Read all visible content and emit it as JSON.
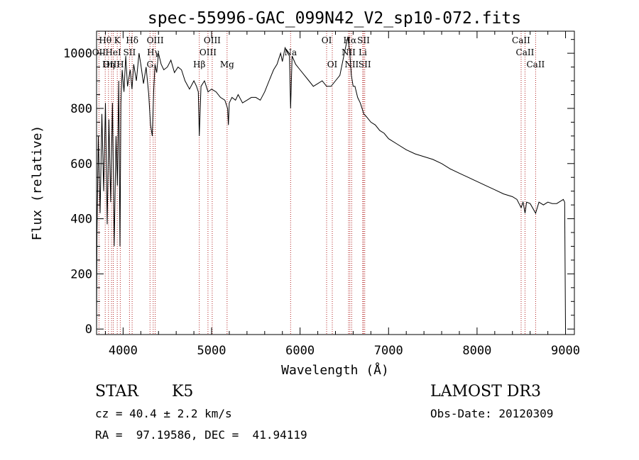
{
  "chart_data": {
    "type": "line",
    "title": "spec-55996-GAC_099N42_V2_sp10-072.fits",
    "xlabel": "Wavelength (Å)",
    "ylabel": "Flux (relative)",
    "xlim": [
      3700,
      9100
    ],
    "ylim": [
      -20,
      1080
    ],
    "xticks": [
      4000,
      5000,
      6000,
      7000,
      8000,
      9000
    ],
    "yticks": [
      0,
      200,
      400,
      600,
      800,
      1000
    ],
    "series": [
      {
        "name": "flux",
        "x": [
          3700,
          3705,
          3720,
          3740,
          3760,
          3780,
          3800,
          3820,
          3840,
          3860,
          3880,
          3900,
          3920,
          3935,
          3950,
          3965,
          3975,
          3990,
          4010,
          4030,
          4050,
          4080,
          4100,
          4120,
          4150,
          4180,
          4200,
          4230,
          4260,
          4290,
          4310,
          4330,
          4345,
          4360,
          4380,
          4400,
          4430,
          4460,
          4500,
          4540,
          4580,
          4620,
          4660,
          4700,
          4750,
          4800,
          4830,
          4850,
          4861,
          4880,
          4920,
          4960,
          5000,
          5050,
          5100,
          5150,
          5180,
          5190,
          5200,
          5230,
          5270,
          5300,
          5350,
          5400,
          5450,
          5500,
          5550,
          5600,
          5650,
          5700,
          5740,
          5780,
          5800,
          5830,
          5860,
          5880,
          5893,
          5910,
          5950,
          6000,
          6050,
          6100,
          6150,
          6200,
          6250,
          6300,
          6350,
          6400,
          6450,
          6500,
          6540,
          6562,
          6580,
          6600,
          6620,
          6650,
          6680,
          6700,
          6720,
          6750,
          6800,
          6850,
          6900,
          6950,
          7000,
          7100,
          7200,
          7300,
          7400,
          7500,
          7600,
          7700,
          7800,
          7900,
          8000,
          8100,
          8200,
          8300,
          8400,
          8450,
          8498,
          8520,
          8542,
          8560,
          8600,
          8662,
          8700,
          8750,
          8800,
          8850,
          8900,
          8950,
          8975,
          8990,
          9000
        ],
        "values": [
          0,
          350,
          700,
          420,
          780,
          500,
          820,
          380,
          760,
          460,
          820,
          300,
          700,
          520,
          900,
          300,
          820,
          940,
          860,
          990,
          880,
          940,
          870,
          960,
          900,
          1000,
          960,
          890,
          950,
          850,
          740,
          700,
          860,
          960,
          930,
          1000,
          960,
          940,
          950,
          975,
          930,
          950,
          940,
          900,
          870,
          900,
          880,
          860,
          700,
          880,
          900,
          860,
          870,
          860,
          840,
          830,
          800,
          740,
          820,
          840,
          830,
          850,
          820,
          830,
          840,
          840,
          830,
          860,
          900,
          940,
          960,
          1000,
          970,
          1020,
          1000,
          990,
          800,
          990,
          960,
          940,
          920,
          900,
          880,
          890,
          900,
          880,
          880,
          900,
          920,
          1000,
          1060,
          1000,
          920,
          880,
          880,
          840,
          820,
          800,
          780,
          770,
          750,
          740,
          720,
          710,
          690,
          670,
          650,
          635,
          625,
          615,
          600,
          580,
          565,
          550,
          535,
          520,
          505,
          490,
          480,
          470,
          440,
          460,
          420,
          460,
          455,
          420,
          460,
          450,
          460,
          455,
          455,
          465,
          470,
          460,
          0
        ]
      }
    ],
    "lines": [
      {
        "name": "Hθ",
        "x": 3798,
        "row": 0
      },
      {
        "name": "K",
        "x": 3934,
        "row": 0
      },
      {
        "name": "Hδ",
        "x": 4102,
        "row": 0
      },
      {
        "name": "OIII",
        "x": 4363,
        "row": 0
      },
      {
        "name": "OIII",
        "x": 5007,
        "row": 0
      },
      {
        "name": "OI",
        "x": 6300,
        "row": 0
      },
      {
        "name": "Hα",
        "x": 6563,
        "row": 0
      },
      {
        "name": "SII",
        "x": 6717,
        "row": 0
      },
      {
        "name": "CaII",
        "x": 8498,
        "row": 0
      },
      {
        "name": "OII",
        "x": 3727,
        "row": 1
      },
      {
        "name": "HeI",
        "x": 3889,
        "row": 1
      },
      {
        "name": "SII",
        "x": 4072,
        "row": 1
      },
      {
        "name": "Hγ",
        "x": 4340,
        "row": 1
      },
      {
        "name": "OIII",
        "x": 4959,
        "row": 1
      },
      {
        "name": "Na",
        "x": 5893,
        "row": 1
      },
      {
        "name": "NII",
        "x": 6548,
        "row": 1
      },
      {
        "name": "Li",
        "x": 6708,
        "row": 1
      },
      {
        "name": "CaII",
        "x": 8542,
        "row": 1
      },
      {
        "name": "OIII",
        "x": 3869,
        "row": 2
      },
      {
        "name": "Hη",
        "x": 3835,
        "row": 2
      },
      {
        "name": "H",
        "x": 3968,
        "row": 2
      },
      {
        "name": "G",
        "x": 4304,
        "row": 2
      },
      {
        "name": "Hβ",
        "x": 4861,
        "row": 2
      },
      {
        "name": "Mg",
        "x": 5175,
        "row": 2
      },
      {
        "name": "OI",
        "x": 6364,
        "row": 2
      },
      {
        "name": "NII",
        "x": 6583,
        "row": 2
      },
      {
        "name": "SII",
        "x": 6731,
        "row": 2
      },
      {
        "name": "CaII",
        "x": 8662,
        "row": 2
      }
    ],
    "colors": {
      "spectrum": "#000000",
      "line_marker": "#b22222",
      "axes": "#000000"
    }
  },
  "info": {
    "class": "STAR",
    "subclass": "K5",
    "survey": "LAMOST DR3",
    "cz": "cz = 40.4 ± 2.2 km/s",
    "obs_date": "Obs-Date: 20120309",
    "coords": "RA =  97.19586, DEC =  41.94119"
  }
}
